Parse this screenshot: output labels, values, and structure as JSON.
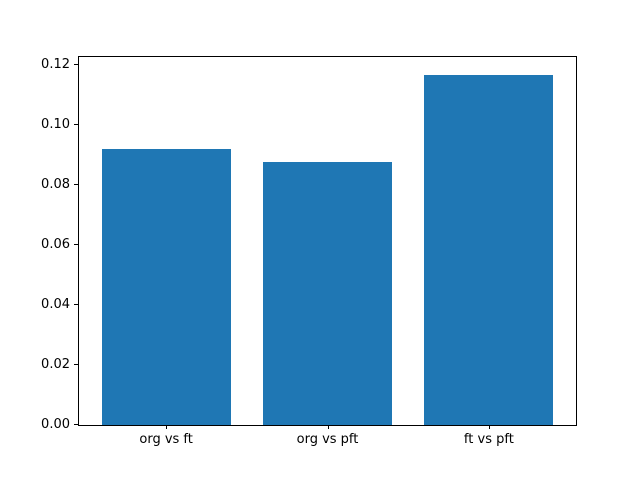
{
  "chart_data": {
    "type": "bar",
    "categories": [
      "org vs ft",
      "org vs pft",
      "ft vs pft"
    ],
    "values": [
      0.092,
      0.0877,
      0.1167
    ],
    "title": "",
    "xlabel": "",
    "ylabel": "",
    "yticks": [
      0.0,
      0.02,
      0.04,
      0.06,
      0.08,
      0.1,
      0.12
    ],
    "yticklabels": [
      "0.00",
      "0.02",
      "0.04",
      "0.06",
      "0.08",
      "0.10",
      "0.12"
    ],
    "ylim": [
      0,
      0.1227
    ],
    "xlim": [
      -0.54,
      2.54
    ],
    "bar_width": 0.8,
    "bar_color": "#1f77b4",
    "axis_color": "#000000",
    "background_color": "#ffffff",
    "grid": false,
    "legend": null
  }
}
